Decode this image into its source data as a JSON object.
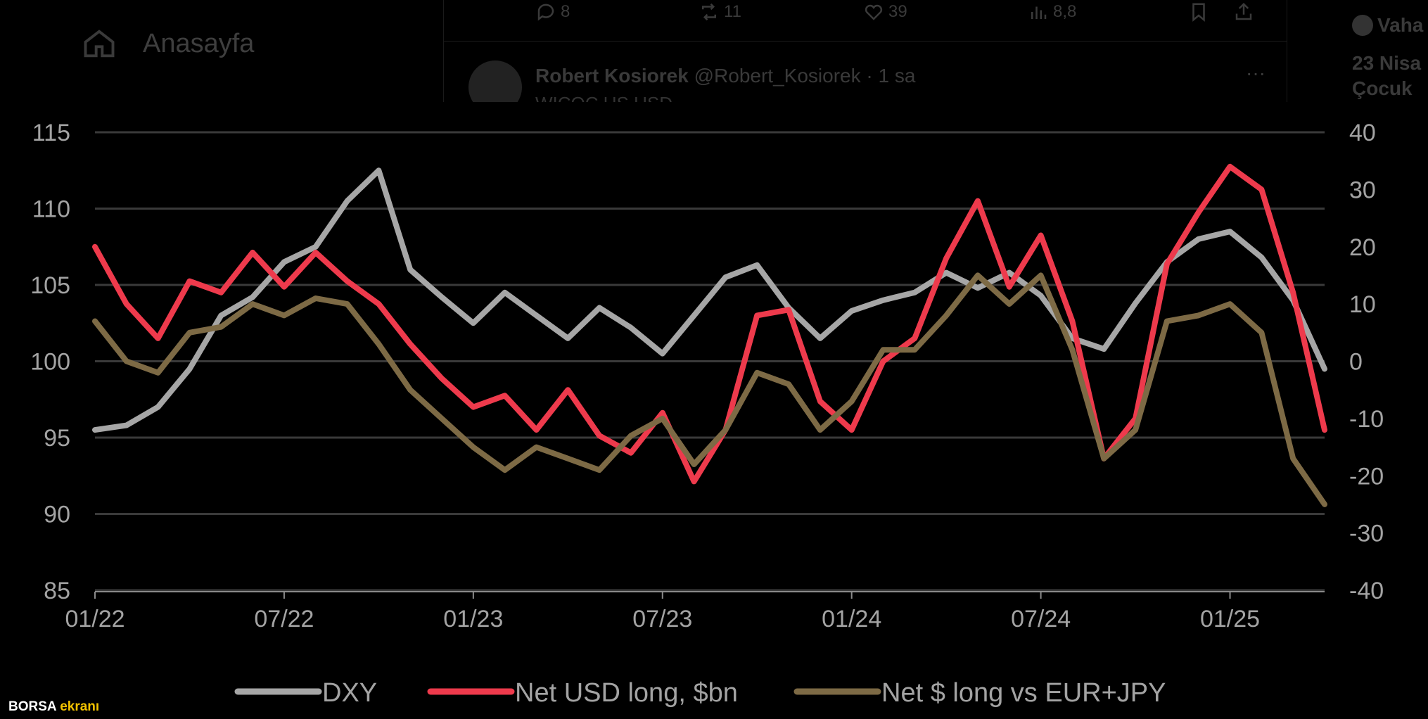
{
  "background_ui": {
    "sidebar": {
      "home_label": "Anasayfa"
    },
    "tweet_actions": {
      "replies": "8",
      "retweets": "11",
      "likes": "39",
      "views": "8,8"
    },
    "tweet": {
      "author_name": "Robert Kosiorek",
      "author_handle": "@Robert_Kosiorek",
      "time": "· 1 sa",
      "more": "···",
      "snippet": "WICOC US USD"
    },
    "right_column": {
      "name": "Vaha",
      "line1": "23 Nisa",
      "line2": "Çocuk"
    }
  },
  "watermark": {
    "part1": "BORSA",
    "part2": "ekranı"
  },
  "colors": {
    "dxy": "#a6a6a6",
    "net_usd": "#ee3a4c",
    "net_eur_jpy": "#7d6a45",
    "grid": "#3a3a3a",
    "text": "#a3a3a3"
  },
  "chart_data": {
    "type": "line",
    "title": "",
    "xlabel": "",
    "ylabel_left": "",
    "ylabel_right": "",
    "x_ticks": [
      "01/22",
      "07/22",
      "01/23",
      "07/23",
      "01/24",
      "07/24",
      "01/25"
    ],
    "x_range": [
      "2022-01",
      "2025-04"
    ],
    "left_axis": {
      "ticks": [
        "115",
        "110",
        "105",
        "100",
        "95",
        "90",
        "85"
      ],
      "ylim": [
        85,
        115
      ]
    },
    "right_axis": {
      "ticks": [
        "40",
        "30",
        "20",
        "10",
        "0",
        "-10",
        "-20",
        "-30",
        "-40"
      ],
      "ylim": [
        -40,
        40
      ]
    },
    "grid": "horizontal",
    "legend_position": "bottom",
    "series": [
      {
        "name": "DXY",
        "axis": "left",
        "values": [
          [
            "2022-01",
            95.5
          ],
          [
            "2022-02",
            95.8
          ],
          [
            "2022-03",
            97.0
          ],
          [
            "2022-04",
            99.5
          ],
          [
            "2022-05",
            103.0
          ],
          [
            "2022-06",
            104.2
          ],
          [
            "2022-07",
            106.5
          ],
          [
            "2022-08",
            107.5
          ],
          [
            "2022-09",
            110.5
          ],
          [
            "2022-10",
            112.5
          ],
          [
            "2022-11",
            106.0
          ],
          [
            "2022-12",
            104.2
          ],
          [
            "2023-01",
            102.5
          ],
          [
            "2023-02",
            104.5
          ],
          [
            "2023-03",
            103.0
          ],
          [
            "2023-04",
            101.5
          ],
          [
            "2023-05",
            103.5
          ],
          [
            "2023-06",
            102.2
          ],
          [
            "2023-07",
            100.5
          ],
          [
            "2023-08",
            103.0
          ],
          [
            "2023-09",
            105.5
          ],
          [
            "2023-10",
            106.3
          ],
          [
            "2023-11",
            103.5
          ],
          [
            "2023-12",
            101.5
          ],
          [
            "2024-01",
            103.3
          ],
          [
            "2024-02",
            104.0
          ],
          [
            "2024-03",
            104.5
          ],
          [
            "2024-04",
            105.8
          ],
          [
            "2024-05",
            104.8
          ],
          [
            "2024-06",
            105.8
          ],
          [
            "2024-07",
            104.3
          ],
          [
            "2024-08",
            101.5
          ],
          [
            "2024-09",
            100.8
          ],
          [
            "2024-10",
            103.8
          ],
          [
            "2024-11",
            106.5
          ],
          [
            "2024-12",
            108.0
          ],
          [
            "2025-01",
            108.5
          ],
          [
            "2025-02",
            106.8
          ],
          [
            "2025-03",
            104.0
          ],
          [
            "2025-04",
            99.5
          ]
        ]
      },
      {
        "name": "Net USD long, $bn",
        "axis": "right",
        "values": [
          [
            "2022-01",
            20
          ],
          [
            "2022-02",
            10
          ],
          [
            "2022-03",
            4
          ],
          [
            "2022-04",
            14
          ],
          [
            "2022-05",
            12
          ],
          [
            "2022-06",
            19
          ],
          [
            "2022-07",
            13
          ],
          [
            "2022-08",
            19
          ],
          [
            "2022-09",
            14
          ],
          [
            "2022-10",
            10
          ],
          [
            "2022-11",
            3
          ],
          [
            "2022-12",
            -3
          ],
          [
            "2023-01",
            -8
          ],
          [
            "2023-02",
            -6
          ],
          [
            "2023-03",
            -12
          ],
          [
            "2023-04",
            -5
          ],
          [
            "2023-05",
            -13
          ],
          [
            "2023-06",
            -16
          ],
          [
            "2023-07",
            -9
          ],
          [
            "2023-08",
            -21
          ],
          [
            "2023-09",
            -12
          ],
          [
            "2023-10",
            8
          ],
          [
            "2023-11",
            9
          ],
          [
            "2023-12",
            -7
          ],
          [
            "2024-01",
            -12
          ],
          [
            "2024-02",
            0
          ],
          [
            "2024-03",
            4
          ],
          [
            "2024-04",
            18
          ],
          [
            "2024-05",
            28
          ],
          [
            "2024-06",
            13
          ],
          [
            "2024-07",
            22
          ],
          [
            "2024-08",
            7
          ],
          [
            "2024-09",
            -17
          ],
          [
            "2024-10",
            -10
          ],
          [
            "2024-11",
            17
          ],
          [
            "2024-12",
            26
          ],
          [
            "2025-01",
            34
          ],
          [
            "2025-02",
            30
          ],
          [
            "2025-03",
            12
          ],
          [
            "2025-04",
            -12
          ]
        ]
      },
      {
        "name": "Net $ long vs EUR+JPY",
        "axis": "right",
        "values": [
          [
            "2022-01",
            7
          ],
          [
            "2022-02",
            0
          ],
          [
            "2022-03",
            -2
          ],
          [
            "2022-04",
            5
          ],
          [
            "2022-05",
            6
          ],
          [
            "2022-06",
            10
          ],
          [
            "2022-07",
            8
          ],
          [
            "2022-08",
            11
          ],
          [
            "2022-09",
            10
          ],
          [
            "2022-10",
            3
          ],
          [
            "2022-11",
            -5
          ],
          [
            "2022-12",
            -10
          ],
          [
            "2023-01",
            -15
          ],
          [
            "2023-02",
            -19
          ],
          [
            "2023-03",
            -15
          ],
          [
            "2023-04",
            -17
          ],
          [
            "2023-05",
            -19
          ],
          [
            "2023-06",
            -13
          ],
          [
            "2023-07",
            -10
          ],
          [
            "2023-08",
            -18
          ],
          [
            "2023-09",
            -12
          ],
          [
            "2023-10",
            -2
          ],
          [
            "2023-11",
            -4
          ],
          [
            "2023-12",
            -12
          ],
          [
            "2024-01",
            -7
          ],
          [
            "2024-02",
            2
          ],
          [
            "2024-03",
            2
          ],
          [
            "2024-04",
            8
          ],
          [
            "2024-05",
            15
          ],
          [
            "2024-06",
            10
          ],
          [
            "2024-07",
            15
          ],
          [
            "2024-08",
            2
          ],
          [
            "2024-09",
            -17
          ],
          [
            "2024-10",
            -12
          ],
          [
            "2024-11",
            7
          ],
          [
            "2024-12",
            8
          ],
          [
            "2025-01",
            10
          ],
          [
            "2025-02",
            5
          ],
          [
            "2025-03",
            -17
          ],
          [
            "2025-04",
            -25
          ]
        ]
      }
    ]
  }
}
